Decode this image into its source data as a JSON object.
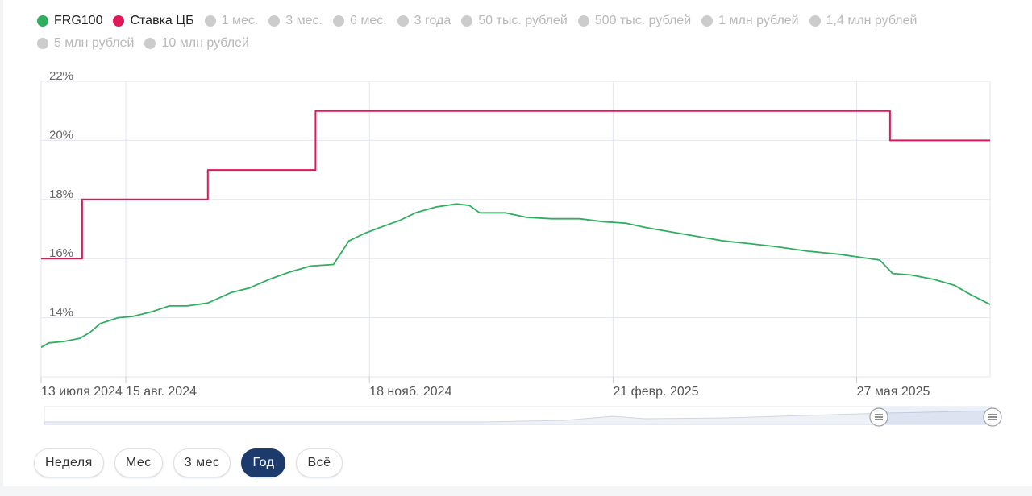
{
  "legend": {
    "items": [
      {
        "label": "FRG100",
        "color": "#2fae5f",
        "active": true
      },
      {
        "label": "Ставка ЦБ",
        "color": "#e0185a",
        "active": true
      },
      {
        "label": "1 мес.",
        "color": "#cccccc",
        "active": false
      },
      {
        "label": "3 мес.",
        "color": "#cccccc",
        "active": false
      },
      {
        "label": "6 мес.",
        "color": "#cccccc",
        "active": false
      },
      {
        "label": "3 года",
        "color": "#cccccc",
        "active": false
      },
      {
        "label": "50 тыс. рублей",
        "color": "#cccccc",
        "active": false
      },
      {
        "label": "500 тыс. рублей",
        "color": "#cccccc",
        "active": false
      },
      {
        "label": "1 млн рублей",
        "color": "#cccccc",
        "active": false
      },
      {
        "label": "1,4 млн рублей",
        "color": "#cccccc",
        "active": false
      },
      {
        "label": "5 млн рублей",
        "color": "#cccccc",
        "active": false
      },
      {
        "label": "10 млн рублей",
        "color": "#cccccc",
        "active": false
      }
    ]
  },
  "chart_data": {
    "type": "line",
    "x_axis": {
      "type": "date",
      "min": "2024-07-13",
      "max": "2025-07-18",
      "tick_labels": [
        "13 июля 2024",
        "15 авг. 2024",
        "18 нояб. 2024",
        "21 февр. 2025",
        "27 мая 2025"
      ]
    },
    "y_axis": {
      "min": 12,
      "max": 22,
      "ticks": [
        14,
        16,
        18,
        20,
        22
      ],
      "tick_labels": [
        "14%",
        "16%",
        "18%",
        "20%",
        "22%"
      ],
      "unit": "%"
    },
    "grid": true,
    "legend_position": "top-left",
    "series": [
      {
        "name": "FRG100",
        "color": "#2fae5f",
        "step": false,
        "points": [
          [
            "2024-07-13",
            13.0
          ],
          [
            "2024-07-16",
            13.15
          ],
          [
            "2024-07-22",
            13.2
          ],
          [
            "2024-07-28",
            13.3
          ],
          [
            "2024-08-01",
            13.5
          ],
          [
            "2024-08-05",
            13.8
          ],
          [
            "2024-08-12",
            14.0
          ],
          [
            "2024-08-18",
            14.05
          ],
          [
            "2024-08-25",
            14.2
          ],
          [
            "2024-09-01",
            14.4
          ],
          [
            "2024-09-08",
            14.4
          ],
          [
            "2024-09-16",
            14.5
          ],
          [
            "2024-09-25",
            14.85
          ],
          [
            "2024-10-02",
            15.0
          ],
          [
            "2024-10-10",
            15.3
          ],
          [
            "2024-10-18",
            15.55
          ],
          [
            "2024-10-26",
            15.75
          ],
          [
            "2024-11-04",
            15.8
          ],
          [
            "2024-11-07",
            16.2
          ],
          [
            "2024-11-10",
            16.6
          ],
          [
            "2024-11-16",
            16.85
          ],
          [
            "2024-11-22",
            17.05
          ],
          [
            "2024-11-30",
            17.3
          ],
          [
            "2024-12-06",
            17.55
          ],
          [
            "2024-12-14",
            17.75
          ],
          [
            "2024-12-22",
            17.85
          ],
          [
            "2024-12-27",
            17.8
          ],
          [
            "2024-12-31",
            17.55
          ],
          [
            "2025-01-10",
            17.55
          ],
          [
            "2025-01-18",
            17.4
          ],
          [
            "2025-01-28",
            17.35
          ],
          [
            "2025-02-08",
            17.35
          ],
          [
            "2025-02-17",
            17.25
          ],
          [
            "2025-02-26",
            17.2
          ],
          [
            "2025-03-06",
            17.05
          ],
          [
            "2025-03-16",
            16.9
          ],
          [
            "2025-03-26",
            16.75
          ],
          [
            "2025-04-05",
            16.6
          ],
          [
            "2025-04-16",
            16.5
          ],
          [
            "2025-04-26",
            16.4
          ],
          [
            "2025-05-08",
            16.25
          ],
          [
            "2025-05-20",
            16.15
          ],
          [
            "2025-05-28",
            16.05
          ],
          [
            "2025-06-05",
            15.95
          ],
          [
            "2025-06-10",
            15.5
          ],
          [
            "2025-06-17",
            15.45
          ],
          [
            "2025-06-26",
            15.3
          ],
          [
            "2025-07-04",
            15.1
          ],
          [
            "2025-07-10",
            14.8
          ],
          [
            "2025-07-18",
            14.45
          ]
        ]
      },
      {
        "name": "Ставка ЦБ",
        "color": "#e0185a",
        "step": true,
        "points": [
          [
            "2024-07-13",
            16.0
          ],
          [
            "2024-07-29",
            18.0
          ],
          [
            "2024-09-16",
            19.0
          ],
          [
            "2024-10-28",
            21.0
          ],
          [
            "2025-06-09",
            20.0
          ],
          [
            "2025-07-18",
            20.0
          ]
        ]
      }
    ]
  },
  "navigator": {
    "handle_left_icon": "handle-grip-icon",
    "handle_right_icon": "handle-grip-icon"
  },
  "range_buttons": {
    "items": [
      {
        "label": "Неделя",
        "active": false
      },
      {
        "label": "Мес",
        "active": false
      },
      {
        "label": "3 мес",
        "active": false
      },
      {
        "label": "Год",
        "active": true
      },
      {
        "label": "Всё",
        "active": false
      }
    ]
  }
}
